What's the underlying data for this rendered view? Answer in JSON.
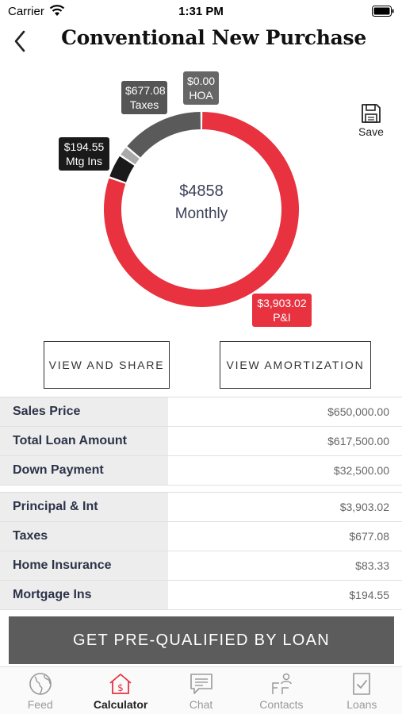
{
  "status_bar": {
    "carrier": "Carrier",
    "time": "1:31 PM"
  },
  "header": {
    "title": "Conventional New Purchase"
  },
  "save": {
    "label": "Save"
  },
  "payment_chart": {
    "center_amount": "$4858",
    "center_label": "Monthly",
    "segments": [
      {
        "key": "pi",
        "value": 3903.02,
        "line1": "$3,903.02",
        "line2": "P&I",
        "color": "#e8323f"
      },
      {
        "key": "mtg_ins",
        "value": 194.55,
        "line1": "$194.55",
        "line2": "Mtg Ins",
        "color": "#1a1a1a"
      },
      {
        "key": "insurance",
        "value": 83.33,
        "color": "#a9a9a9"
      },
      {
        "key": "taxes",
        "value": 677.08,
        "line1": "$677.08",
        "line2": "Taxes",
        "color": "#5a5a5a"
      },
      {
        "key": "hoa",
        "value": 0.0,
        "line1": "$0.00",
        "line2": "HOA",
        "color": "#666666"
      }
    ]
  },
  "actions": {
    "share_label": "VIEW AND SHARE",
    "amortization_label": "VIEW AMORTIZATION"
  },
  "loan_summary": [
    {
      "label": "Sales Price",
      "value": "$650,000.00"
    },
    {
      "label": "Total Loan Amount",
      "value": "$617,500.00"
    },
    {
      "label": "Down Payment",
      "value": "$32,500.00"
    }
  ],
  "monthly_breakdown": [
    {
      "label": "Principal & Int",
      "value": "$3,903.02"
    },
    {
      "label": "Taxes",
      "value": "$677.08"
    },
    {
      "label": "Home Insurance",
      "value": "$83.33"
    },
    {
      "label": "Mortgage Ins",
      "value": "$194.55"
    }
  ],
  "cta": {
    "label": "GET PRE-QUALIFIED BY LOAN"
  },
  "tabs": [
    {
      "label": "Feed",
      "icon": "globe-icon",
      "active": false
    },
    {
      "label": "Calculator",
      "icon": "calculator-house-icon",
      "active": true
    },
    {
      "label": "Chat",
      "icon": "chat-icon",
      "active": false
    },
    {
      "label": "Contacts",
      "icon": "contacts-icon",
      "active": false
    },
    {
      "label": "Loans",
      "icon": "loans-icon",
      "active": false
    }
  ]
}
